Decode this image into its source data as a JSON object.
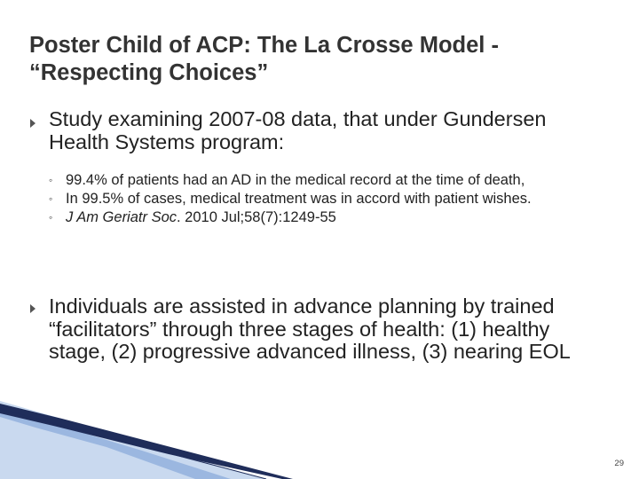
{
  "slide": {
    "title": "Poster Child of ACP: The La Crosse Model - “Respecting Choices”",
    "bullets": [
      {
        "text": "Study examining 2007-08 data, that under Gundersen Health Systems program:",
        "subitems": [
          "99.4% of patients had an AD in the medical record at the time of death,",
          "In 99.5% of cases, medical treatment was in accord with patient wishes."
        ],
        "citation": {
          "journal": "J Am Geriatr Soc",
          "details": ". 2010 Jul;58(7):1249-55"
        }
      },
      {
        "text": "Individuals are assisted in advance planning by trained “facilitators” through three stages of health: (1) healthy stage, (2) progressive advanced illness, (3) nearing EOL"
      }
    ],
    "page_number": "29"
  },
  "colors": {
    "title": "#333333",
    "body_text": "#222222",
    "bullet_arrow": "#555555",
    "decor_dark": "#1f2d5a",
    "decor_blue": "#9bb7e0",
    "decor_light": "#c9d9ef"
  },
  "icons": {
    "bullet": "arrowhead-right",
    "sub_bullet": "hollow-circle"
  }
}
